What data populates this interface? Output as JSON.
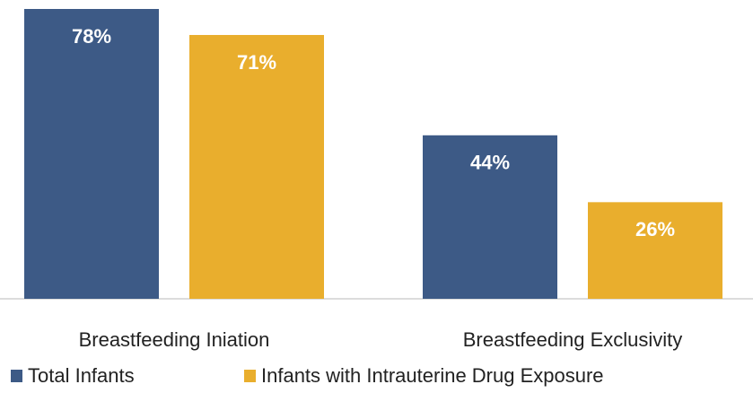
{
  "chart_data": {
    "type": "bar",
    "categories": [
      "Breastfeeding Iniation",
      "Breastfeeding Exclusivity"
    ],
    "series": [
      {
        "name": "Total Infants",
        "color": "#3d5a86",
        "values": [
          78,
          44
        ],
        "value_labels": [
          "78%",
          "44%"
        ]
      },
      {
        "name": "Infants with Intrauterine Drug Exposure",
        "color": "#e9ae2d",
        "values": [
          71,
          26
        ],
        "value_labels": [
          "71%",
          "26%"
        ]
      }
    ],
    "legend": "bottom"
  }
}
